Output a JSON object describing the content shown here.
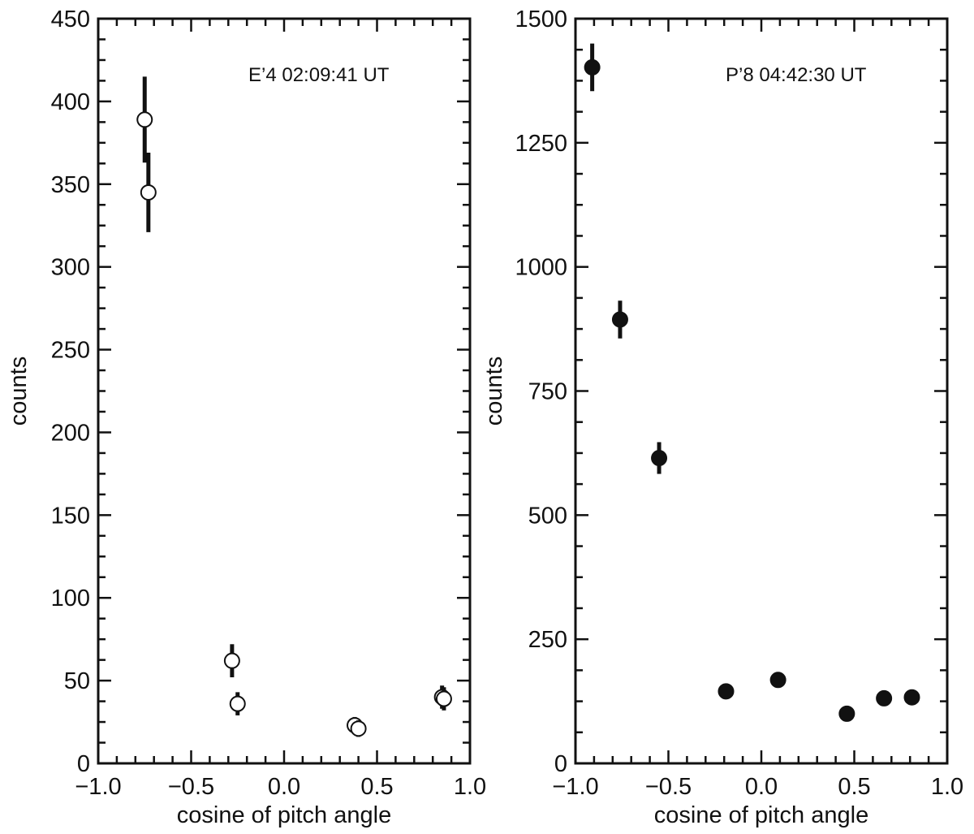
{
  "chart_data": [
    {
      "type": "scatter",
      "title": "",
      "annotation": "E’4  02:09:41 UT",
      "xlabel": "cosine of pitch angle",
      "ylabel": "counts",
      "xlim": [
        -1.0,
        1.0
      ],
      "ylim": [
        0,
        450
      ],
      "xticks": [
        -1.0,
        -0.5,
        0.0,
        0.5,
        1.0
      ],
      "xtick_labels": [
        "−1.0",
        "−0.5",
        "0.0",
        "0.5",
        "1.0"
      ],
      "yticks": [
        0,
        50,
        100,
        150,
        200,
        250,
        300,
        350,
        400,
        450
      ],
      "ytick_labels": [
        "0",
        "50",
        "100",
        "150",
        "200",
        "250",
        "300",
        "350",
        "400",
        "450"
      ],
      "grid": false,
      "marker": "open-circle",
      "points": [
        {
          "x": -0.75,
          "y": 389,
          "err": 26
        },
        {
          "x": -0.73,
          "y": 345,
          "err": 24
        },
        {
          "x": -0.28,
          "y": 62,
          "err": 10
        },
        {
          "x": -0.25,
          "y": 36,
          "err": 7
        },
        {
          "x": 0.38,
          "y": 23,
          "err": 5
        },
        {
          "x": 0.4,
          "y": 21,
          "err": 5
        },
        {
          "x": 0.85,
          "y": 40,
          "err": 7
        },
        {
          "x": 0.86,
          "y": 39,
          "err": 7
        }
      ]
    },
    {
      "type": "scatter",
      "title": "",
      "annotation": "P’8  04:42:30 UT",
      "xlabel": "cosine of pitch angle",
      "ylabel": "counts",
      "xlim": [
        -1.0,
        1.0
      ],
      "ylim": [
        0,
        1500
      ],
      "xticks": [
        -1.0,
        -0.5,
        0.0,
        0.5,
        1.0
      ],
      "xtick_labels": [
        "−1.0",
        "−0.5",
        "0.0",
        "0.5",
        "1.0"
      ],
      "yticks": [
        0,
        250,
        500,
        750,
        1000,
        1250,
        1500
      ],
      "ytick_labels": [
        "0",
        "250",
        "500",
        "750",
        "1000",
        "1250",
        "1500"
      ],
      "grid": false,
      "marker": "filled-circle",
      "points": [
        {
          "x": -0.91,
          "y": 1402,
          "err": 48
        },
        {
          "x": -0.76,
          "y": 894,
          "err": 38
        },
        {
          "x": -0.55,
          "y": 615,
          "err": 32
        },
        {
          "x": -0.19,
          "y": 145,
          "err": 12
        },
        {
          "x": 0.09,
          "y": 168,
          "err": 14
        },
        {
          "x": 0.46,
          "y": 100,
          "err": 10
        },
        {
          "x": 0.66,
          "y": 131,
          "err": 11
        },
        {
          "x": 0.81,
          "y": 133,
          "err": 11
        }
      ]
    }
  ]
}
